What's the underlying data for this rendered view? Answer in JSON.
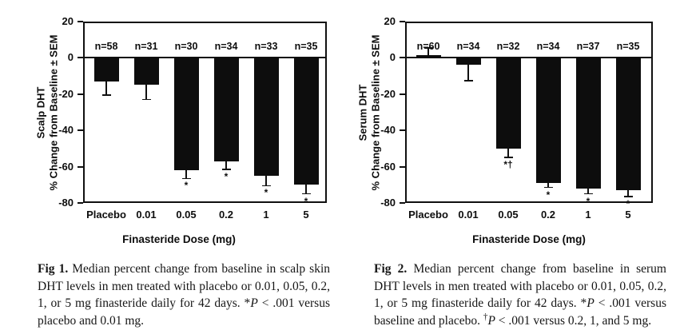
{
  "chart_data": [
    {
      "type": "bar",
      "figure": "Fig 1",
      "categories": [
        "Placebo",
        "0.01",
        "0.05",
        "0.2",
        "1",
        "5"
      ],
      "values": [
        -13,
        -15,
        -62,
        -57,
        -65,
        -70
      ],
      "sem": [
        7.5,
        8,
        4.5,
        4.5,
        5.5,
        5
      ],
      "n_labels": [
        "n=58",
        "n=31",
        "n=30",
        "n=34",
        "n=33",
        "n=35"
      ],
      "sig_markers": [
        "",
        "",
        "*",
        "*",
        "*",
        "*"
      ],
      "ylabel_lines": [
        "Scalp DHT",
        "% Change from Baseline ± SEM"
      ],
      "xlabel": "Finasteride Dose (mg)",
      "ylim": [
        -80,
        20
      ],
      "yticks": [
        20,
        0,
        -20,
        -40,
        -60,
        -80
      ],
      "ytick_labels": [
        "20",
        "0",
        "-20",
        "-40",
        "-60",
        "-80"
      ],
      "zero_line": true,
      "grid": false,
      "legend": false,
      "bar_color": "#0d0d0d",
      "axis_color": "#101010"
    },
    {
      "type": "bar",
      "figure": "Fig 2",
      "categories": [
        "Placebo",
        "0.01",
        "0.05",
        "0.2",
        "1",
        "5"
      ],
      "values": [
        1.5,
        -4,
        -50,
        -69,
        -72,
        -73
      ],
      "sem": [
        4,
        8.5,
        5,
        2.5,
        3,
        3.5
      ],
      "n_labels": [
        "n=60",
        "n=34",
        "n=32",
        "n=34",
        "n=37",
        "n=35"
      ],
      "sig_markers": [
        "",
        "",
        "*†",
        "*",
        "*",
        "*"
      ],
      "ylabel_lines": [
        "Serum DHT",
        "% Change from Baseline ± SEM"
      ],
      "xlabel": "Finasteride Dose (mg)",
      "ylim": [
        -80,
        20
      ],
      "yticks": [
        20,
        0,
        -20,
        -40,
        -60,
        -80
      ],
      "ytick_labels": [
        "20",
        "0",
        "-20",
        "-40",
        "-60",
        "-80"
      ],
      "zero_line": true,
      "grid": false,
      "legend": false,
      "bar_color": "#0d0d0d",
      "axis_color": "#101010"
    }
  ],
  "captions": [
    {
      "segments": [
        {
          "text": "Fig 1.",
          "bold": true
        },
        {
          "text": " Median percent change from baseline in scalp skin DHT levels in men treated with placebo or 0.01, 0.05, 0.2, 1, or 5 mg finasteride daily for 42 days. *"
        },
        {
          "text": "P",
          "italic": true
        },
        {
          "text": " < .001 versus placebo and 0.01 mg."
        }
      ]
    },
    {
      "segments": [
        {
          "text": "Fig 2.",
          "bold": true
        },
        {
          "text": " Median percent change from baseline in serum DHT levels in men treated with placebo or 0.01, 0.05, 0.2, 1, or 5 mg finasteride daily for 42 days. *"
        },
        {
          "text": "P",
          "italic": true
        },
        {
          "text": " < .001 versus baseline and placebo. "
        },
        {
          "text": "†",
          "sup": true
        },
        {
          "text": "P",
          "italic": true
        },
        {
          "text": " < .001 versus 0.2, 1, and 5 mg."
        }
      ]
    }
  ]
}
